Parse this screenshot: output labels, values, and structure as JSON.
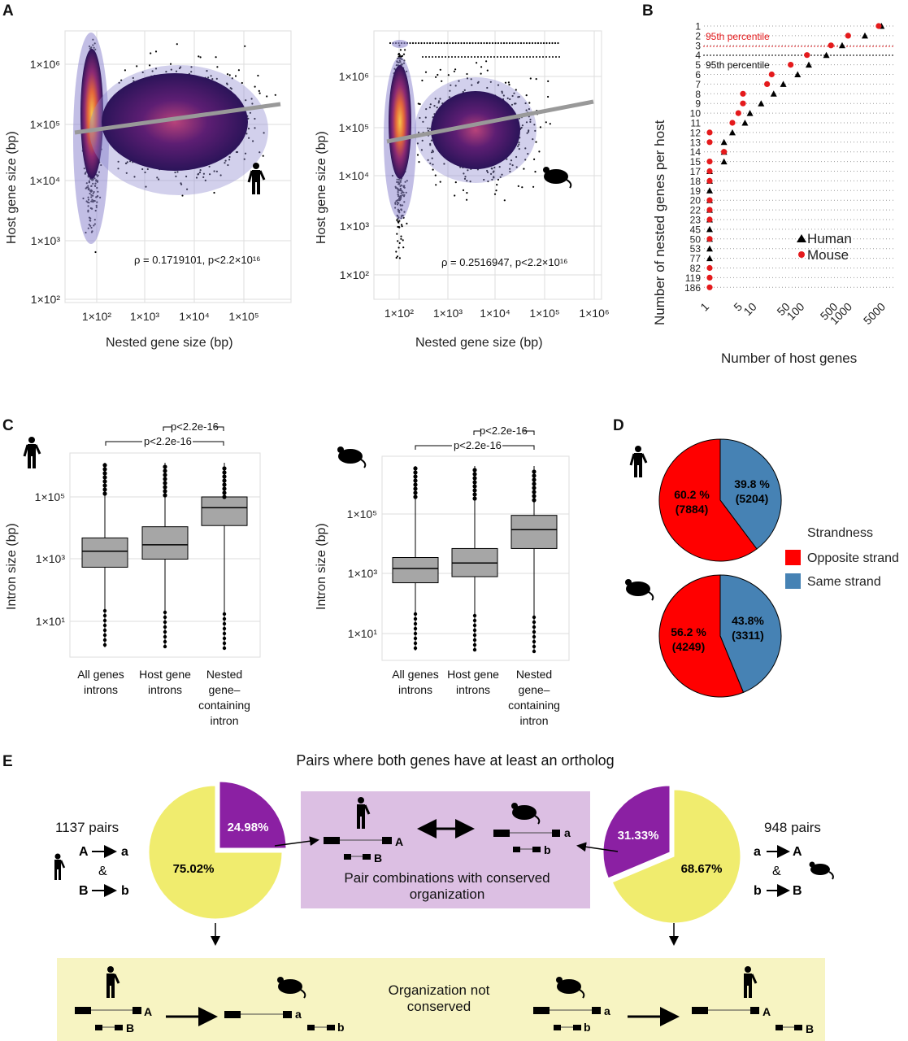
{
  "panels": {
    "A": {
      "label": "A",
      "human": {
        "xlabel": "Nested gene size (bp)",
        "ylabel": "Host gene size (bp)",
        "xticks": [
          "1×10²",
          "1×10³",
          "1×10⁴",
          "1×10⁵"
        ],
        "yticks": [
          "1×10⁶",
          "1×10⁵",
          "1×10⁴",
          "1×10³",
          "1×10²"
        ],
        "stat": "ρ = 0.1719101, p<2.2×10¹⁶",
        "species_icon": "human-icon"
      },
      "mouse": {
        "xlabel": "Nested gene size (bp)",
        "ylabel": "Host gene size (bp)",
        "xticks": [
          "1×10²",
          "1×10³",
          "1×10⁴",
          "1×10⁵",
          "1×10⁶"
        ],
        "yticks": [
          "1×10⁶",
          "1×10⁵",
          "1×10⁴",
          "1×10³",
          "1×10²"
        ],
        "stat": "ρ = 0.2516947, p<2.2×10¹⁶",
        "species_icon": "mouse-icon"
      }
    },
    "B": {
      "label": "B",
      "ylabel": "Number of nested genes per host",
      "xlabel": "Number of host genes",
      "yticks": [
        "1",
        "2",
        "3",
        "4",
        "5",
        "6",
        "7",
        "8",
        "9",
        "10",
        "11",
        "12",
        "13",
        "14",
        "15",
        "17",
        "18",
        "19",
        "20",
        "22",
        "23",
        "45",
        "50",
        "53",
        "77",
        "82",
        "119",
        "186"
      ],
      "xticks": [
        "1",
        "5",
        "10",
        "50",
        "100",
        "500",
        "1000",
        "5000"
      ],
      "percentile_mouse": "95th percentile",
      "percentile_human": "95th percentile",
      "legend": [
        {
          "name": "Human",
          "color": "#000000",
          "shape": "triangle"
        },
        {
          "name": "Mouse",
          "color": "#e41a1c",
          "shape": "circle"
        }
      ]
    },
    "C": {
      "label": "C",
      "ylabel": "Intron size (bp)",
      "categories": [
        "All genes introns",
        "Host gene introns",
        "Nested gene–containing intron"
      ],
      "human": {
        "yticks": [
          "1×10⁵",
          "1×10³",
          "1×10¹"
        ],
        "bracket_top": "p<2.2e-16",
        "bracket_bottom": "p<2.2e-16"
      },
      "mouse": {
        "yticks": [
          "1×10⁵",
          "1×10³",
          "1×10¹"
        ],
        "bracket_top": "p<2.2e-16",
        "bracket_bottom": "p<2.2e-16"
      }
    },
    "D": {
      "label": "D",
      "legend_title": "Strandness",
      "legend": [
        {
          "name": "Opposite strand",
          "color": "#ff0000"
        },
        {
          "name": "Same strand",
          "color": "#4682b4"
        }
      ],
      "human_pie": {
        "opposite_pct": "60.2 %",
        "opposite_n": "(7884)",
        "same_pct": "39.8 %",
        "same_n": "(5204)"
      },
      "mouse_pie": {
        "opposite_pct": "56.2 %",
        "opposite_n": "(4249)",
        "same_pct": "43.8%",
        "same_n": "(3311)"
      }
    },
    "E": {
      "label": "E",
      "title": "Pairs where both genes have at least an ortholog",
      "left": {
        "pairs": "1137 pairs",
        "line1_a": "A",
        "line1_b": "a",
        "amp": "&",
        "line2_a": "B",
        "line2_b": "b",
        "conserved": "24.98%",
        "not_conserved": "75.02%"
      },
      "right": {
        "pairs": "948 pairs",
        "line1_a": "a",
        "line1_b": "A",
        "amp": "&",
        "line2_a": "b",
        "line2_b": "B",
        "conserved": "31.33%",
        "not_conserved": "68.67%"
      },
      "conserved_box": "Pair combinations with conserved organization",
      "not_conserved_box": "Organization not conserved",
      "gene_labels": {
        "A": "A",
        "B": "B",
        "a": "a",
        "b": "b"
      }
    }
  },
  "colors": {
    "red": "#ff0000",
    "blue": "#4682b4",
    "purple": "#8b20a3",
    "yellow": "#f0ec6e",
    "box_gray": "#a6a6a6"
  },
  "chart_data": [
    {
      "type": "scatter",
      "title": "",
      "xlabel": "Nested gene size (bp)",
      "ylabel": "Host gene size (bp)",
      "xscale": "log",
      "yscale": "log",
      "xlim": [
        30,
        600000
      ],
      "ylim": [
        100,
        3000000
      ],
      "annotation": "ρ = 0.1719101, p<2.2×10¹⁶"
    },
    {
      "type": "scatter",
      "title": "",
      "xlabel": "Nested gene size (bp)",
      "ylabel": "Host gene size (bp)",
      "xscale": "log",
      "yscale": "log",
      "xlim": [
        30,
        1500000
      ],
      "ylim": [
        50,
        3000000
      ],
      "annotation": "ρ = 0.2516947, p<2.2×10¹⁶"
    },
    {
      "type": "scatter",
      "title": "",
      "xlabel": "Number of host genes",
      "ylabel": "Number of nested genes per host",
      "xscale": "log",
      "legend": "bottom-right",
      "series": [
        {
          "name": "Human",
          "points": [
            [
              4000,
              "1"
            ],
            [
              1800,
              "2"
            ],
            [
              600,
              "3"
            ],
            [
              280,
              "4"
            ],
            [
              120,
              "5"
            ],
            [
              70,
              "6"
            ],
            [
              35,
              "7"
            ],
            [
              22,
              "8"
            ],
            [
              12,
              "9"
            ],
            [
              7,
              "10"
            ],
            [
              5.5,
              "11"
            ],
            [
              3,
              "12"
            ],
            [
              2,
              "13"
            ],
            [
              2,
              "14"
            ],
            [
              2,
              "15"
            ],
            [
              1,
              "17"
            ],
            [
              1,
              "18"
            ],
            [
              1,
              "19"
            ],
            [
              1,
              "20"
            ],
            [
              1,
              "22"
            ],
            [
              1,
              "23"
            ],
            [
              1,
              "45"
            ],
            [
              1,
              "50"
            ],
            [
              1,
              "53"
            ],
            [
              1,
              "77"
            ]
          ]
        },
        {
          "name": "Mouse",
          "points": [
            [
              3500,
              "1"
            ],
            [
              800,
              "2"
            ],
            [
              350,
              "3"
            ],
            [
              110,
              "4"
            ],
            [
              50,
              "5"
            ],
            [
              20,
              "6"
            ],
            [
              16,
              "7"
            ],
            [
              5,
              "8"
            ],
            [
              5,
              "9"
            ],
            [
              4,
              "10"
            ],
            [
              3,
              "11"
            ],
            [
              1,
              "12"
            ],
            [
              1,
              "13"
            ],
            [
              2,
              "14"
            ],
            [
              1,
              "15"
            ],
            [
              1,
              "17"
            ],
            [
              1,
              "18"
            ],
            [
              1,
              "20"
            ],
            [
              1,
              "22"
            ],
            [
              1,
              "23"
            ],
            [
              1,
              "50"
            ],
            [
              1,
              "82"
            ],
            [
              1,
              "119"
            ],
            [
              1,
              "186"
            ]
          ]
        }
      ]
    },
    {
      "type": "box",
      "title": "",
      "ylabel": "Intron size (bp)",
      "yscale": "log",
      "categories": [
        "All genes introns",
        "Host gene introns",
        "Nested gene–containing intron"
      ],
      "series": [
        {
          "name": "Human",
          "median": [
            1800,
            2900,
            45000
          ],
          "q1": [
            550,
            1000,
            12000
          ],
          "q3": [
            4800,
            11000,
            100000
          ]
        }
      ]
    },
    {
      "type": "box",
      "title": "",
      "ylabel": "Intron size (bp)",
      "yscale": "log",
      "categories": [
        "All genes introns",
        "Host gene introns",
        "Nested gene–containing intron"
      ],
      "series": [
        {
          "name": "Mouse",
          "median": [
            1500,
            2300,
            30000
          ],
          "q1": [
            500,
            800,
            7000
          ],
          "q3": [
            3500,
            7000,
            90000
          ]
        }
      ]
    },
    {
      "type": "pie",
      "title": "",
      "categories": [
        "Opposite strand",
        "Same strand"
      ],
      "series": [
        {
          "name": "",
          "values": [
            7884,
            5204
          ]
        }
      ]
    },
    {
      "type": "pie",
      "title": "",
      "categories": [
        "Opposite strand",
        "Same strand"
      ],
      "series": [
        {
          "name": "",
          "values": [
            4249,
            3311
          ]
        }
      ]
    },
    {
      "type": "pie",
      "title": "",
      "values": [
        24.98,
        75.02
      ]
    },
    {
      "type": "pie",
      "title": "",
      "values": [
        31.33,
        68.67
      ]
    }
  ]
}
